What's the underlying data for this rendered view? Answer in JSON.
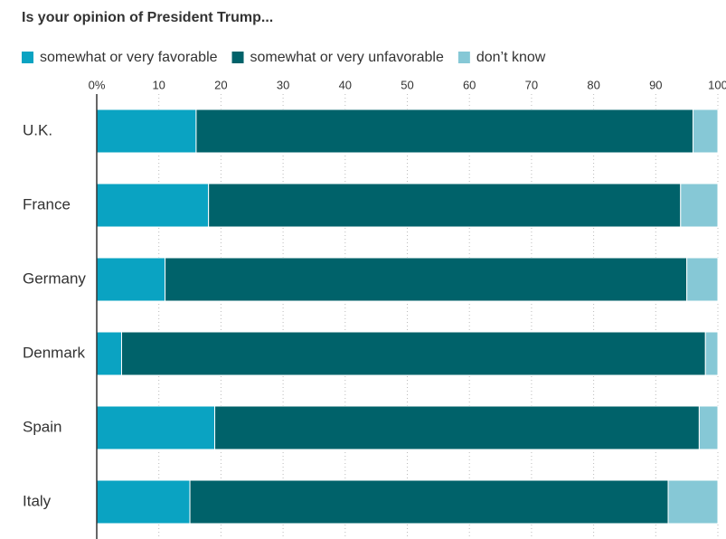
{
  "chart_data": {
    "type": "stacked-bar-horizontal",
    "title": "Is your opinion of President Trump...",
    "categories": [
      "U.K.",
      "France",
      "Germany",
      "Denmark",
      "Spain",
      "Italy"
    ],
    "series": [
      {
        "name": "somewhat or very favorable",
        "color": "#0aa3c2",
        "values": [
          16,
          18,
          11,
          4,
          19,
          15
        ]
      },
      {
        "name": "somewhat or very unfavorable",
        "color": "#00626a",
        "values": [
          80,
          76,
          84,
          94,
          78,
          77
        ]
      },
      {
        "name": "don’t know",
        "color": "#86c8d6",
        "values": [
          4,
          6,
          5,
          2,
          3,
          8
        ]
      }
    ],
    "xlim": [
      0,
      100
    ],
    "xticks": [
      {
        "value": 0,
        "label": "0%"
      },
      10,
      20,
      30,
      40,
      50,
      60,
      70,
      80,
      90,
      100
    ],
    "grid": true
  }
}
